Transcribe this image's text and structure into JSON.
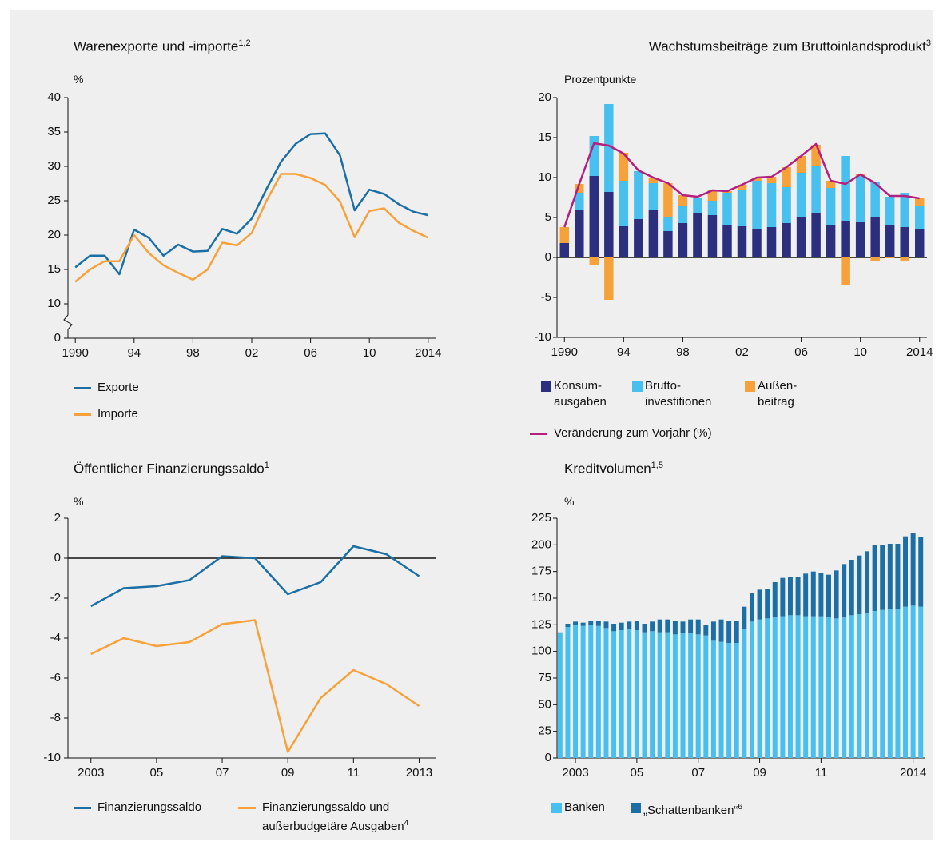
{
  "chart_data": [
    {
      "type": "line",
      "title": "Warenexporte und -importe",
      "title_note": "1,2",
      "y_unit": "%",
      "x": [
        1990,
        1991,
        1992,
        1993,
        1994,
        1995,
        1996,
        1997,
        1998,
        1999,
        2000,
        2001,
        2002,
        2003,
        2004,
        2005,
        2006,
        2007,
        2008,
        2009,
        2010,
        2011,
        2012,
        2013,
        2014
      ],
      "xlim": [
        1989.5,
        2014.5
      ],
      "xticks": [
        1990,
        {
          "value": 1994,
          "label": "94"
        },
        {
          "value": 1998,
          "label": "98"
        },
        {
          "value": 2002,
          "label": "02"
        },
        {
          "value": 2006,
          "label": "06"
        },
        {
          "value": 2010,
          "label": "10"
        },
        2014
      ],
      "ylim": [
        0,
        40
      ],
      "yticks": [
        0,
        10,
        15,
        20,
        25,
        30,
        35,
        40
      ],
      "axis_break": [
        0,
        10
      ],
      "series": [
        {
          "name": "Exporte",
          "color": "#1b6fa5",
          "values": [
            15.3,
            17,
            17,
            14.3,
            20.8,
            19.6,
            17,
            18.6,
            17.6,
            17.7,
            20.9,
            20.2,
            22.4,
            26.7,
            30.7,
            33.3,
            34.7,
            34.8,
            31.6,
            23.6,
            26.6,
            26,
            24.5,
            23.4,
            22.9
          ]
        },
        {
          "name": "Importe",
          "color": "#f7a13a",
          "values": [
            13.2,
            15,
            16.2,
            16.2,
            20,
            17.4,
            15.6,
            14.5,
            13.5,
            15,
            18.9,
            18.5,
            20.3,
            25,
            28.9,
            28.9,
            28.3,
            27.3,
            24.9,
            19.7,
            23.5,
            23.9,
            21.8,
            20.6,
            19.6
          ]
        }
      ]
    },
    {
      "type": "combo",
      "title": "Wachstumsbeiträge zum Bruttoinlandsprodukt",
      "title_note": "3",
      "y_unit": "Prozentpunkte",
      "x": [
        1990,
        1991,
        1992,
        1993,
        1994,
        1995,
        1996,
        1997,
        1998,
        1999,
        2000,
        2001,
        2002,
        2003,
        2004,
        2005,
        2006,
        2007,
        2008,
        2009,
        2010,
        2011,
        2012,
        2013,
        2014
      ],
      "xlim": [
        1989.5,
        2014.5
      ],
      "xticks": [
        1990,
        {
          "value": 1994,
          "label": "94"
        },
        {
          "value": 1998,
          "label": "98"
        },
        {
          "value": 2002,
          "label": "02"
        },
        {
          "value": 2006,
          "label": "06"
        },
        {
          "value": 2010,
          "label": "10"
        },
        2014
      ],
      "ylim": [
        -10,
        20
      ],
      "yticks": [
        -10,
        -5,
        0,
        5,
        10,
        15,
        20
      ],
      "stacked": true,
      "series": [
        {
          "name": "Konsum-\nausgaben",
          "kind": "bar",
          "color": "#2b2f7e",
          "values": [
            1.8,
            5.9,
            10.2,
            8.2,
            3.9,
            4.8,
            5.9,
            3.3,
            4.3,
            5.6,
            5.3,
            4.1,
            3.9,
            3.5,
            3.8,
            4.3,
            5.0,
            5.5,
            4.1,
            4.5,
            4.4,
            5.1,
            4.1,
            3.8,
            3.5
          ]
        },
        {
          "name": "Brutto-\ninvestitionen",
          "kind": "bar",
          "color": "#48c0ef",
          "values": [
            0,
            2.2,
            5,
            11,
            5.7,
            6,
            3.4,
            1.7,
            2.2,
            1.9,
            1.8,
            4,
            4.5,
            6.1,
            5.5,
            4.5,
            5.6,
            6.0,
            4.6,
            8.2,
            5.8,
            4.4,
            3.5,
            4.3,
            3.0
          ]
        },
        {
          "name": "Außen-\nbeitrag",
          "kind": "bar",
          "color": "#f7a13a",
          "values": [
            2.0,
            1.1,
            -1,
            -5.3,
            3.5,
            0,
            0.7,
            4.3,
            1.3,
            0,
            1.3,
            0.2,
            0.7,
            0.4,
            0.8,
            2.5,
            2.1,
            2.6,
            0.9,
            -3.5,
            0.2,
            -0.5,
            -0.1,
            -0.4,
            0.9
          ]
        },
        {
          "name": "Veränderung zum Vorjahr (%)",
          "kind": "line",
          "color": "#b4207f",
          "values": [
            3.8,
            9.2,
            14.3,
            14.0,
            13.0,
            10.9,
            10.0,
            9.3,
            7.8,
            7.6,
            8.4,
            8.3,
            9.1,
            10.0,
            10.1,
            11.3,
            12.7,
            14.2,
            9.6,
            9.2,
            10.4,
            9.3,
            7.7,
            7.7,
            7.4
          ]
        }
      ]
    },
    {
      "type": "line",
      "title": "Öffentlicher Finanzierungssaldo",
      "title_note": "1",
      "y_unit": "%",
      "x": [
        2003,
        2004,
        2005,
        2006,
        2007,
        2008,
        2009,
        2010,
        2011,
        2012,
        2013
      ],
      "xlim": [
        2002.3,
        2013.5
      ],
      "xticks": [
        2003,
        {
          "value": 2005,
          "label": "05"
        },
        {
          "value": 2007,
          "label": "07"
        },
        {
          "value": 2009,
          "label": "09"
        },
        {
          "value": 2011,
          "label": "11"
        },
        2013
      ],
      "ylim": [
        -10,
        2
      ],
      "yticks": [
        -10,
        -8,
        -6,
        -4,
        -2,
        0,
        2
      ],
      "series": [
        {
          "name": "Finanzierungssaldo",
          "color": "#1b6fa5",
          "values": [
            -2.4,
            -1.5,
            -1.4,
            -1.1,
            0.1,
            0,
            -1.8,
            -1.2,
            0.6,
            0.2,
            -0.9
          ]
        },
        {
          "name": "Finanzierungssaldo und\naußerbudgetäre Ausgaben",
          "name_note": "4",
          "color": "#f7a13a",
          "values": [
            -4.8,
            -4.0,
            -4.4,
            -4.2,
            -3.3,
            -3.1,
            -9.7,
            -7.0,
            -5.6,
            -6.3,
            -7.4
          ]
        }
      ]
    },
    {
      "type": "bar",
      "title": "Kreditvolumen",
      "title_note": "1,5",
      "y_unit": "%",
      "stacked": true,
      "x": [
        2002.5,
        2002.75,
        2003,
        2003.25,
        2003.5,
        2003.75,
        2004,
        2004.25,
        2004.5,
        2004.75,
        2005,
        2005.25,
        2005.5,
        2005.75,
        2006,
        2006.25,
        2006.5,
        2006.75,
        2007,
        2007.25,
        2007.5,
        2007.75,
        2008,
        2008.25,
        2008.5,
        2008.75,
        2009,
        2009.25,
        2009.5,
        2009.75,
        2010,
        2010.25,
        2010.5,
        2010.75,
        2011,
        2011.25,
        2011.5,
        2011.75,
        2012,
        2012.25,
        2012.5,
        2012.75,
        2013,
        2013.25,
        2013.5,
        2013.75,
        2014,
        2014.25
      ],
      "xlim": [
        2002.4,
        2014.4
      ],
      "xticks": [
        2003,
        {
          "value": 2005,
          "label": "05"
        },
        {
          "value": 2007,
          "label": "07"
        },
        {
          "value": 2009,
          "label": "09"
        },
        {
          "value": 2011,
          "label": "11"
        },
        2014
      ],
      "ylim": [
        0,
        225
      ],
      "yticks": [
        0,
        25,
        50,
        75,
        100,
        125,
        150,
        175,
        200,
        225
      ],
      "series": [
        {
          "name": "Banken",
          "color": "#48c0ef",
          "values": [
            118,
            123,
            125,
            124,
            125,
            124,
            122,
            119,
            120,
            121,
            120,
            118,
            119,
            118,
            118,
            116,
            117,
            117,
            116,
            115,
            110,
            109,
            108,
            108,
            121,
            128,
            130,
            131,
            132,
            133,
            134,
            134,
            133,
            133,
            133,
            132,
            131,
            132,
            134,
            135,
            136,
            138,
            139,
            140,
            140,
            142,
            143,
            142
          ]
        },
        {
          "name": "„Schattenbanken“",
          "name_note": "6",
          "color": "#1b6fa5",
          "values": [
            0,
            3,
            3,
            3,
            4,
            5,
            6,
            7,
            7,
            7,
            9,
            8,
            9,
            12,
            12,
            13,
            11,
            13,
            14,
            10,
            18,
            21,
            21,
            21,
            21,
            27,
            28,
            28,
            33,
            36,
            36,
            36,
            40,
            42,
            41,
            40,
            45,
            50,
            52,
            55,
            58,
            62,
            61,
            61,
            61,
            66,
            68,
            65
          ]
        }
      ]
    }
  ]
}
